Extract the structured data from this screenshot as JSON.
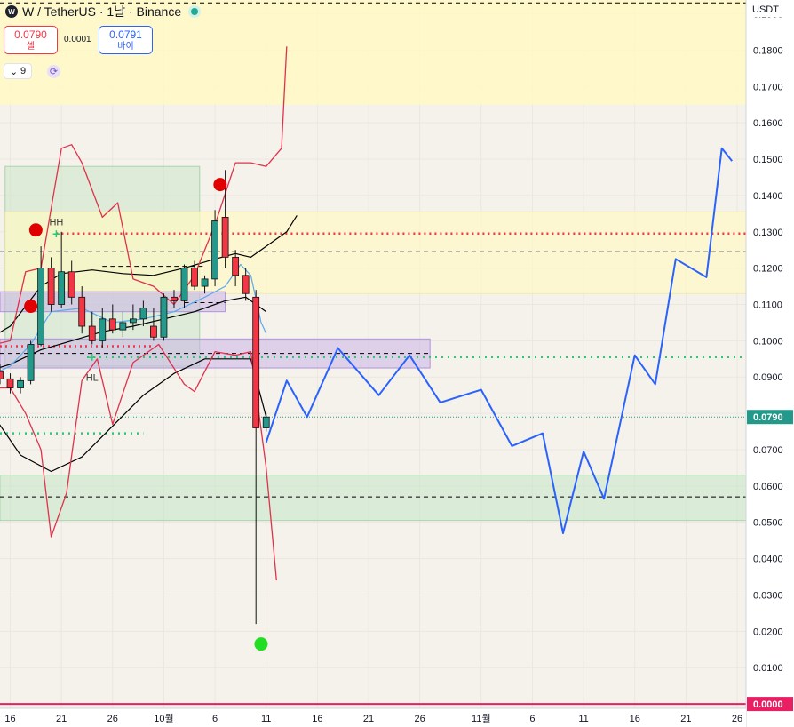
{
  "header": {
    "symbol": "W / TetherUS · 1날 · Binance",
    "logo_text": "W"
  },
  "trade": {
    "sell_price": "0.0790",
    "sell_label": "셀",
    "spread": "0.0001",
    "buy_price": "0.0791",
    "buy_label": "바이"
  },
  "indicators": {
    "count": "9"
  },
  "currency": "USDT",
  "colors": {
    "up": "#22998a",
    "down": "#f23645",
    "projection": "#2962ff",
    "envelope": "#e0314b",
    "ma_black": "#000000",
    "ma_blue": "#5aa9ef"
  },
  "chart_data": {
    "type": "candlestick",
    "y_axis": {
      "ylim": [
        -0.0012,
        0.1938
      ],
      "ticks": [
        "0.1900",
        "0.1800",
        "0.1700",
        "0.1600",
        "0.1500",
        "0.1400",
        "0.1300",
        "0.1200",
        "0.1100",
        "0.1000",
        "0.0900",
        "0.0800",
        "0.0700",
        "0.0600",
        "0.0500",
        "0.0400",
        "0.0300",
        "0.0200",
        "0.0100"
      ]
    },
    "x_axis": {
      "ticks": [
        "16",
        "21",
        "26",
        "10월",
        "6",
        "11",
        "16",
        "21",
        "26",
        "11월",
        "6",
        "11",
        "16",
        "21",
        "26"
      ],
      "range_days": [
        15.0,
        87.0
      ],
      "tick_days": [
        16,
        21,
        26,
        31,
        36,
        41,
        46,
        51,
        56,
        62,
        67,
        72,
        77,
        82,
        87
      ]
    },
    "price_labels": [
      {
        "text": "0.0790",
        "value": 0.079,
        "color": "#22998a"
      },
      {
        "text": "0.0000",
        "value": 0.0,
        "color": "#e91e63"
      }
    ],
    "candles": [
      {
        "d": 15,
        "o": 0.0915,
        "h": 0.0935,
        "l": 0.088,
        "c": 0.0895
      },
      {
        "d": 16,
        "o": 0.0895,
        "h": 0.091,
        "l": 0.0855,
        "c": 0.087
      },
      {
        "d": 17,
        "o": 0.087,
        "h": 0.09,
        "l": 0.0855,
        "c": 0.089
      },
      {
        "d": 18,
        "o": 0.089,
        "h": 0.1,
        "l": 0.088,
        "c": 0.099
      },
      {
        "d": 19,
        "o": 0.099,
        "h": 0.126,
        "l": 0.0985,
        "c": 0.12
      },
      {
        "d": 20,
        "o": 0.12,
        "h": 0.123,
        "l": 0.108,
        "c": 0.11
      },
      {
        "d": 21,
        "o": 0.11,
        "h": 0.13,
        "l": 0.109,
        "c": 0.119
      },
      {
        "d": 22,
        "o": 0.119,
        "h": 0.122,
        "l": 0.11,
        "c": 0.112
      },
      {
        "d": 23,
        "o": 0.112,
        "h": 0.115,
        "l": 0.102,
        "c": 0.104
      },
      {
        "d": 24,
        "o": 0.104,
        "h": 0.108,
        "l": 0.099,
        "c": 0.1
      },
      {
        "d": 25,
        "o": 0.1,
        "h": 0.109,
        "l": 0.098,
        "c": 0.106
      },
      {
        "d": 26,
        "o": 0.106,
        "h": 0.11,
        "l": 0.102,
        "c": 0.103
      },
      {
        "d": 27,
        "o": 0.103,
        "h": 0.108,
        "l": 0.101,
        "c": 0.105
      },
      {
        "d": 28,
        "o": 0.105,
        "h": 0.11,
        "l": 0.103,
        "c": 0.106
      },
      {
        "d": 29,
        "o": 0.106,
        "h": 0.111,
        "l": 0.104,
        "c": 0.109
      },
      {
        "d": 30,
        "o": 0.104,
        "h": 0.109,
        "l": 0.1,
        "c": 0.101
      },
      {
        "d": 31,
        "o": 0.101,
        "h": 0.113,
        "l": 0.1,
        "c": 0.112
      },
      {
        "d": 32,
        "o": 0.112,
        "h": 0.114,
        "l": 0.109,
        "c": 0.111
      },
      {
        "d": 33,
        "o": 0.111,
        "h": 0.121,
        "l": 0.109,
        "c": 0.12
      },
      {
        "d": 34,
        "o": 0.12,
        "h": 0.122,
        "l": 0.114,
        "c": 0.115
      },
      {
        "d": 35,
        "o": 0.115,
        "h": 0.118,
        "l": 0.113,
        "c": 0.117
      },
      {
        "d": 36,
        "o": 0.117,
        "h": 0.136,
        "l": 0.115,
        "c": 0.133
      },
      {
        "d": 37,
        "o": 0.134,
        "h": 0.147,
        "l": 0.12,
        "c": 0.123
      },
      {
        "d": 38,
        "o": 0.123,
        "h": 0.125,
        "l": 0.115,
        "c": 0.118
      },
      {
        "d": 39,
        "o": 0.118,
        "h": 0.12,
        "l": 0.111,
        "c": 0.113
      },
      {
        "d": 40,
        "o": 0.112,
        "h": 0.114,
        "l": 0.022,
        "c": 0.076
      },
      {
        "d": 41,
        "o": 0.076,
        "h": 0.08,
        "l": 0.075,
        "c": 0.079
      }
    ],
    "projection_path": [
      [
        41.0,
        0.072
      ],
      [
        43.0,
        0.089
      ],
      [
        45.0,
        0.079
      ],
      [
        48.0,
        0.098
      ],
      [
        52.0,
        0.085
      ],
      [
        55.0,
        0.096
      ],
      [
        58.0,
        0.083
      ],
      [
        62.0,
        0.0865
      ],
      [
        65.0,
        0.071
      ],
      [
        68.0,
        0.0745
      ],
      [
        70.0,
        0.047
      ],
      [
        72.0,
        0.0695
      ],
      [
        74.0,
        0.0565
      ],
      [
        77.0,
        0.096
      ],
      [
        79.0,
        0.088
      ],
      [
        81.0,
        0.1225
      ],
      [
        84.0,
        0.1175
      ],
      [
        85.5,
        0.153
      ],
      [
        86.5,
        0.1495
      ]
    ],
    "ma_black_upper": [
      [
        13.0,
        0.099
      ],
      [
        16.0,
        0.104
      ],
      [
        19.0,
        0.115
      ],
      [
        21.0,
        0.1185
      ],
      [
        24.0,
        0.1195
      ],
      [
        27.0,
        0.1185
      ],
      [
        30.0,
        0.118
      ],
      [
        33.0,
        0.12
      ],
      [
        36.0,
        0.1225
      ],
      [
        38.0,
        0.124
      ],
      [
        39.5,
        0.123
      ],
      [
        41.0,
        0.126
      ],
      [
        43.0,
        0.13
      ],
      [
        44.0,
        0.1345
      ]
    ],
    "ma_black_mid": [
      [
        13.0,
        0.091
      ],
      [
        16.0,
        0.0935
      ],
      [
        19.0,
        0.0975
      ],
      [
        22.0,
        0.1
      ],
      [
        25.0,
        0.1025
      ],
      [
        28.0,
        0.104
      ],
      [
        31.0,
        0.106
      ],
      [
        34.0,
        0.108
      ],
      [
        37.0,
        0.111
      ],
      [
        39.0,
        0.112
      ],
      [
        40.0,
        0.11
      ],
      [
        41.0,
        0.108
      ]
    ],
    "ma_black_lower": [
      [
        13.0,
        0.085
      ],
      [
        17.0,
        0.0685
      ],
      [
        20.0,
        0.064
      ],
      [
        23.0,
        0.068
      ],
      [
        26.0,
        0.0765
      ],
      [
        29.0,
        0.085
      ],
      [
        32.0,
        0.091
      ],
      [
        35.0,
        0.095
      ],
      [
        38.0,
        0.095
      ],
      [
        39.5,
        0.095
      ],
      [
        41.0,
        0.079
      ]
    ],
    "ma_blue": [
      [
        13.0,
        0.089
      ],
      [
        16.0,
        0.093
      ],
      [
        18.0,
        0.099
      ],
      [
        20.0,
        0.108
      ],
      [
        23.0,
        0.109
      ],
      [
        26.0,
        0.105
      ],
      [
        29.0,
        0.106
      ],
      [
        32.0,
        0.108
      ],
      [
        35.0,
        0.112
      ],
      [
        37.0,
        0.115
      ],
      [
        38.5,
        0.121
      ],
      [
        39.5,
        0.118
      ],
      [
        40.5,
        0.105
      ],
      [
        41.0,
        0.102
      ]
    ],
    "envelope_upper": [
      [
        13.0,
        0.098
      ],
      [
        16.0,
        0.1
      ],
      [
        17.5,
        0.119
      ],
      [
        19.0,
        0.12
      ],
      [
        21.0,
        0.153
      ],
      [
        22.0,
        0.154
      ],
      [
        23.0,
        0.149
      ],
      [
        25.0,
        0.134
      ],
      [
        26.5,
        0.138
      ],
      [
        28.0,
        0.117
      ],
      [
        30.0,
        0.115
      ],
      [
        32.0,
        0.11
      ],
      [
        34.0,
        0.118
      ],
      [
        36.0,
        0.132
      ],
      [
        38.0,
        0.149
      ],
      [
        39.5,
        0.149
      ],
      [
        41.0,
        0.148
      ],
      [
        42.5,
        0.153
      ],
      [
        43.0,
        0.181
      ]
    ],
    "envelope_lower": [
      [
        13.0,
        0.087
      ],
      [
        16.0,
        0.087
      ],
      [
        17.5,
        0.08
      ],
      [
        19.0,
        0.07
      ],
      [
        20.0,
        0.046
      ],
      [
        21.5,
        0.058
      ],
      [
        23.0,
        0.089
      ],
      [
        24.5,
        0.095
      ],
      [
        26.0,
        0.077
      ],
      [
        28.0,
        0.094
      ],
      [
        30.5,
        0.099
      ],
      [
        33.0,
        0.088
      ],
      [
        34.0,
        0.086
      ],
      [
        36.0,
        0.097
      ],
      [
        38.0,
        0.096
      ],
      [
        39.5,
        0.097
      ],
      [
        41.0,
        0.065
      ],
      [
        42.0,
        0.034
      ]
    ],
    "swing_markers": [
      {
        "d": 18.5,
        "v": 0.1305,
        "color": "#e00000",
        "label": ""
      },
      {
        "d": 18.0,
        "v": 0.1095,
        "color": "#e00000",
        "label": ""
      },
      {
        "d": 36.5,
        "v": 0.143,
        "color": "#e00000",
        "label": ""
      },
      {
        "d": 40.5,
        "v": 0.0165,
        "color": "#22dd22",
        "label": ""
      }
    ],
    "text_labels": [
      {
        "text": "HH",
        "d": 20.5,
        "v": 0.1318
      },
      {
        "text": "HL",
        "d": 24.0,
        "v": 0.089
      }
    ],
    "plus_markers": [
      {
        "d": 20.5,
        "v": 0.1295
      },
      {
        "d": 24.0,
        "v": 0.0955
      }
    ],
    "zones": [
      {
        "from_d": 0,
        "to_d": 88.0,
        "top": 0.1938,
        "bottom": 0.165,
        "fill": "rgba(255,249,196,0.85)",
        "stroke": "none"
      },
      {
        "from_d": 15.5,
        "to_d": 34.5,
        "top": 0.148,
        "bottom": 0.093,
        "fill": "rgba(200,230,201,0.55)",
        "stroke": "rgba(160,210,165,0.9)"
      },
      {
        "from_d": 15.5,
        "to_d": 88.0,
        "top": 0.1355,
        "bottom": 0.113,
        "fill": "rgba(255,249,196,0.7)",
        "stroke": "rgba(240,230,150,0.7)"
      },
      {
        "from_d": 13.0,
        "to_d": 37.0,
        "top": 0.1135,
        "bottom": 0.108,
        "fill": "rgba(200,180,230,0.55)",
        "stroke": "rgba(170,140,220,0.9)"
      },
      {
        "from_d": 13.0,
        "to_d": 57.0,
        "top": 0.1005,
        "bottom": 0.0925,
        "fill": "rgba(200,180,230,0.55)",
        "stroke": "rgba(170,140,220,0.9)"
      },
      {
        "from_d": 13.0,
        "to_d": 88.0,
        "top": 0.063,
        "bottom": 0.0505,
        "fill": "rgba(200,230,201,0.6)",
        "stroke": "rgba(160,210,165,0.9)"
      }
    ],
    "hlines": [
      {
        "v": 0.193,
        "from_d": 13.0,
        "to_d": 88.0,
        "color": "#000000",
        "dash": "5,4",
        "width": 1
      },
      {
        "v": 0.1295,
        "from_d": 20.5,
        "to_d": 88.0,
        "color": "#f23645",
        "dash": "2,4",
        "width": 2.5
      },
      {
        "v": 0.1245,
        "from_d": 13.0,
        "to_d": 88.0,
        "color": "#000000",
        "dash": "5,4",
        "width": 1
      },
      {
        "v": 0.1205,
        "from_d": 25.0,
        "to_d": 35.0,
        "color": "#000000",
        "dash": "5,4",
        "width": 1
      },
      {
        "v": 0.1105,
        "from_d": 33.0,
        "to_d": 37.0,
        "color": "#000000",
        "dash": "5,4",
        "width": 1
      },
      {
        "v": 0.0985,
        "from_d": 13.0,
        "to_d": 30.0,
        "color": "#f23645",
        "dash": "2,4",
        "width": 2.5
      },
      {
        "v": 0.0965,
        "from_d": 13.0,
        "to_d": 57.0,
        "color": "#000000",
        "dash": "5,4",
        "width": 1
      },
      {
        "v": 0.0955,
        "from_d": 23.5,
        "to_d": 88.0,
        "color": "#22cc77",
        "dash": "2,5",
        "width": 2.5
      },
      {
        "v": 0.079,
        "from_d": 13.0,
        "to_d": 88.0,
        "color": "#22998a",
        "dash": "1,2",
        "width": 1
      },
      {
        "v": 0.0745,
        "from_d": 13.0,
        "to_d": 29.0,
        "color": "#22cc77",
        "dash": "2,5",
        "width": 2.5
      },
      {
        "v": 0.057,
        "from_d": 13.0,
        "to_d": 88.0,
        "color": "#000000",
        "dash": "5,4",
        "width": 1
      },
      {
        "v": 0.0,
        "from_d": 13.0,
        "to_d": 88.0,
        "color": "#e91e63",
        "dash": "",
        "width": 2
      }
    ]
  }
}
